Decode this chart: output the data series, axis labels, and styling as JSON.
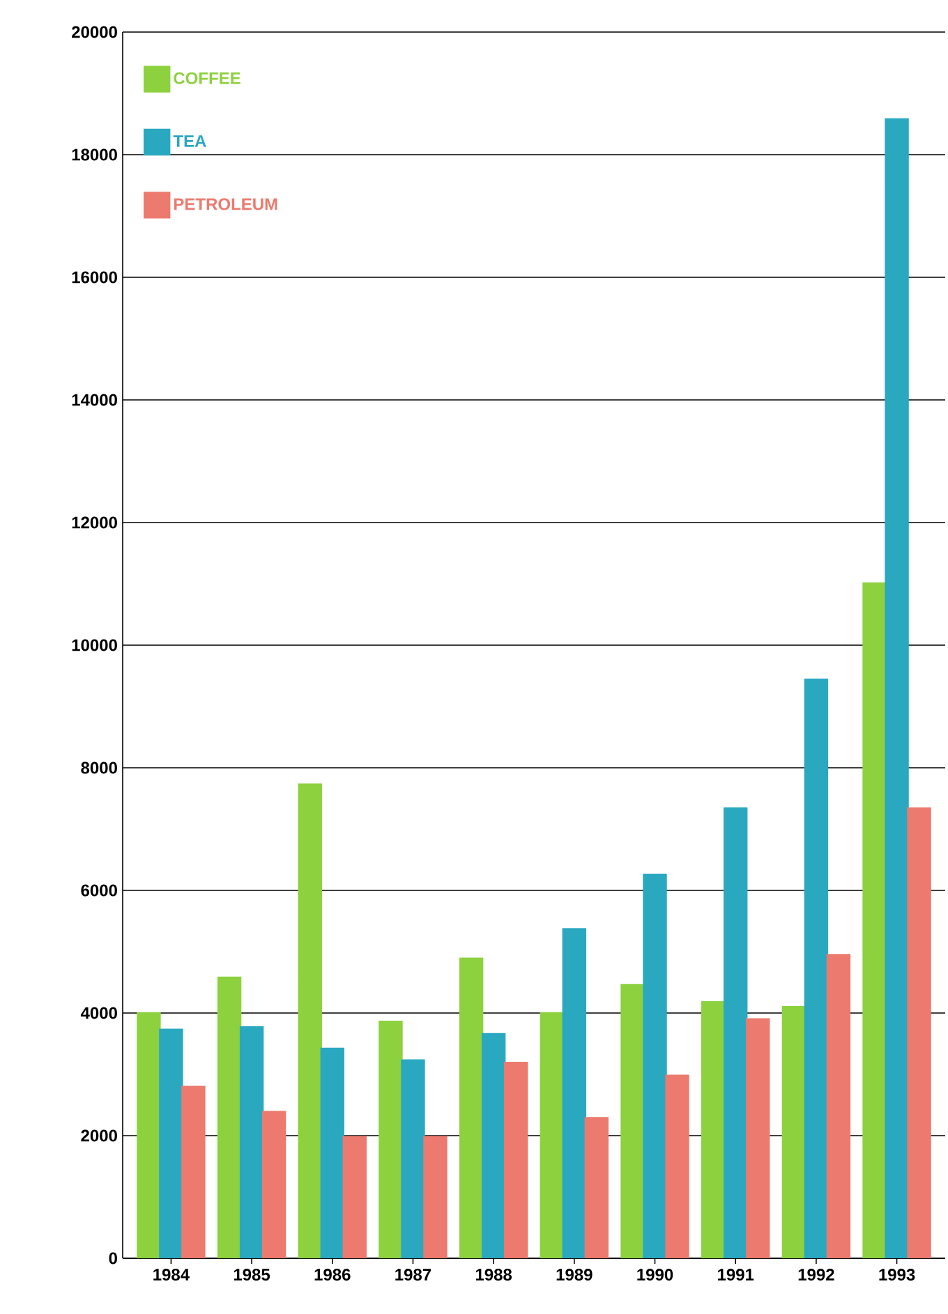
{
  "chart_data": {
    "type": "bar",
    "categories": [
      "1984",
      "1985",
      "1986",
      "1987",
      "1988",
      "1989",
      "1990",
      "1991",
      "1992",
      "1993"
    ],
    "series": [
      {
        "name": "COFFEE",
        "color": "#8dd13f",
        "values": [
          4000,
          4580,
          7730,
          3860,
          4890,
          4000,
          4460,
          4180,
          4100,
          11010
        ]
      },
      {
        "name": "TEA",
        "color": "#2aa8c0",
        "values": [
          3730,
          3770,
          3420,
          3230,
          3660,
          5370,
          6260,
          7340,
          9440,
          18580
        ]
      },
      {
        "name": "PETROLEUM",
        "color": "#ec7a6e",
        "values": [
          2800,
          2390,
          1980,
          1980,
          3190,
          2290,
          2980,
          3900,
          4950,
          7340
        ]
      }
    ],
    "ylim": [
      0,
      20000
    ],
    "yticks": [
      0,
      2000,
      4000,
      6000,
      8000,
      10000,
      12000,
      14000,
      16000,
      18000,
      20000
    ],
    "grid": "y",
    "legend": "top left"
  }
}
